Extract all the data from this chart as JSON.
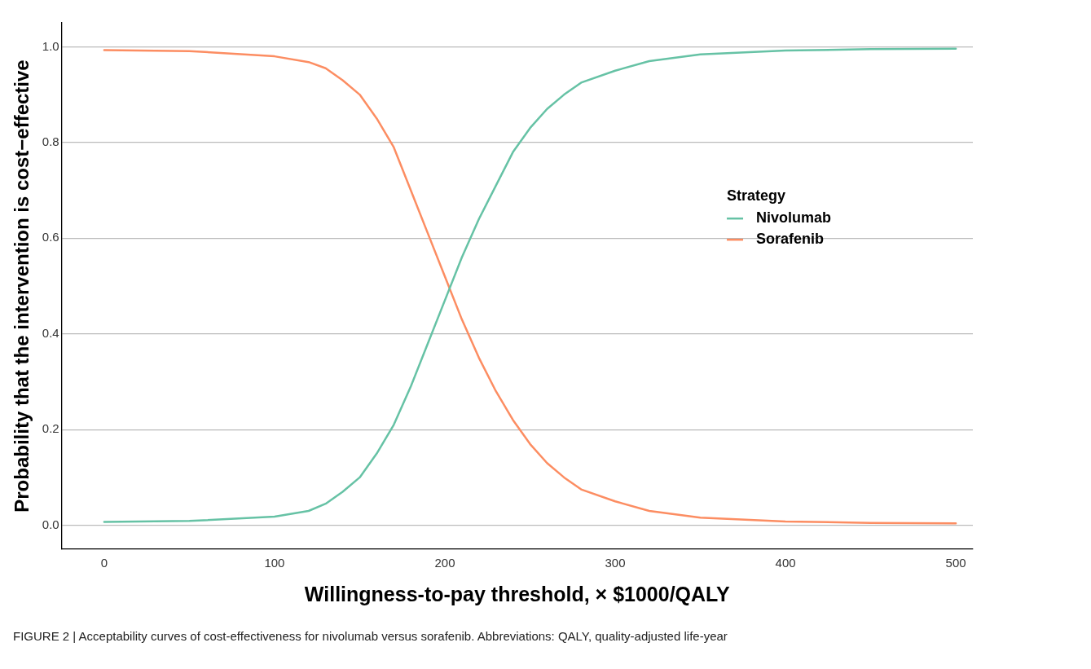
{
  "chart_data": {
    "type": "line",
    "xlabel": "Willingness-to-pay threshold, × $1000/QALY",
    "ylabel": "Probability that the intervention is cost−effective",
    "legend_title": "Strategy",
    "legend": "right",
    "x": [
      0,
      50,
      100,
      120,
      130,
      140,
      150,
      160,
      170,
      180,
      190,
      200,
      210,
      220,
      230,
      240,
      250,
      260,
      270,
      280,
      300,
      320,
      350,
      400,
      450,
      500
    ],
    "series": [
      {
        "name": "Nivolumab",
        "color": "#66c2a5",
        "values": [
          0.007,
          0.009,
          0.018,
          0.03,
          0.045,
          0.07,
          0.1,
          0.15,
          0.21,
          0.29,
          0.38,
          0.47,
          0.56,
          0.64,
          0.71,
          0.78,
          0.83,
          0.87,
          0.9,
          0.925,
          0.95,
          0.97,
          0.984,
          0.992,
          0.995,
          0.996
        ]
      },
      {
        "name": "Sorafenib",
        "color": "#fc8d62",
        "values": [
          0.993,
          0.991,
          0.98,
          0.968,
          0.955,
          0.93,
          0.9,
          0.85,
          0.79,
          0.7,
          0.61,
          0.52,
          0.43,
          0.35,
          0.28,
          0.22,
          0.17,
          0.13,
          0.1,
          0.075,
          0.05,
          0.03,
          0.016,
          0.008,
          0.005,
          0.004
        ]
      }
    ],
    "xlim": [
      -25,
      510
    ],
    "xticks": [
      0,
      100,
      200,
      300,
      400,
      500
    ],
    "ylim": [
      -0.05,
      1.05
    ],
    "yticks": [
      {
        "value": 0,
        "label": "0.0"
      },
      {
        "value": 0.2,
        "label": "0.2"
      },
      {
        "value": 0.4,
        "label": "0.4"
      },
      {
        "value": 0.6,
        "label": "0.6"
      },
      {
        "value": 0.8,
        "label": "0.8"
      },
      {
        "value": 1,
        "label": "1.0"
      }
    ],
    "grid": "y",
    "marker": "none",
    "line_style": "solid",
    "annotations": [
      "FIGURE 2 | Acceptability curves of cost-effectiveness for nivolumab versus sorafenib. Abbreviations: QALY, quality-adjusted life-year"
    ]
  }
}
